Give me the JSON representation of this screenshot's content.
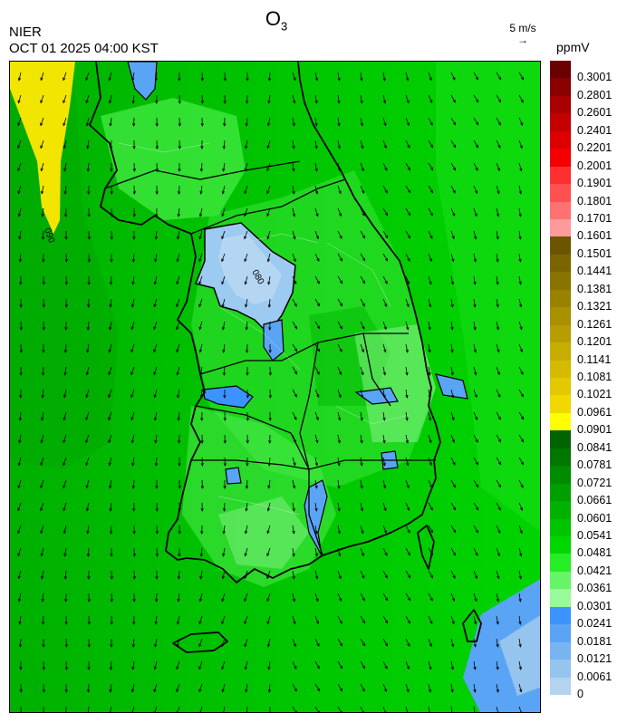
{
  "header": {
    "title_main": "O",
    "title_sub": "3",
    "agency": "NIER",
    "timestamp": "OCT 01 2025 04:00 KST",
    "wind_reference": "5 m/s",
    "unit": "ppmV"
  },
  "legend": {
    "labels": [
      "0.3001",
      "0.2801",
      "0.2601",
      "0.2401",
      "0.2201",
      "0.2001",
      "0.1901",
      "0.1801",
      "0.1701",
      "0.1601",
      "0.1501",
      "0.1441",
      "0.1381",
      "0.1321",
      "0.1261",
      "0.1201",
      "0.1141",
      "0.1081",
      "0.1021",
      "0.0961",
      "0.0901",
      "0.0841",
      "0.0781",
      "0.0721",
      "0.0661",
      "0.0601",
      "0.0541",
      "0.0481",
      "0.0421",
      "0.0361",
      "0.0301",
      "0.0241",
      "0.0181",
      "0.0121",
      "0.0061",
      "0"
    ],
    "colors": [
      "#6b0000",
      "#8a0000",
      "#a80000",
      "#c40000",
      "#dc0000",
      "#f50000",
      "#ff3030",
      "#ff5050",
      "#ff7070",
      "#ff9a9a",
      "#6b5500",
      "#7a6500",
      "#8a7400",
      "#998200",
      "#a89000",
      "#b79e00",
      "#c6ad00",
      "#d4bb00",
      "#e2c900",
      "#f0d800",
      "#ffff00",
      "#006400",
      "#007800",
      "#008c00",
      "#009f00",
      "#00b200",
      "#00c400",
      "#00d600",
      "#26ee26",
      "#66f566",
      "#99fa99",
      "#3a93ff",
      "#5aa4f5",
      "#78b4f0",
      "#95c4ee",
      "#b3d3ef"
    ]
  },
  "map": {
    "land_labels": [
      "080",
      "090"
    ]
  }
}
